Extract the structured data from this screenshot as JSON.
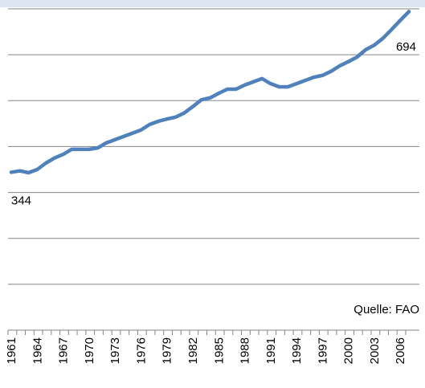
{
  "chart_data": {
    "type": "line",
    "source": "Quelle: FAO",
    "categories": [
      "1961",
      null,
      null,
      "1964",
      null,
      null,
      "1967",
      null,
      null,
      "1970",
      null,
      null,
      "1973",
      null,
      null,
      "1976",
      null,
      null,
      "1979",
      null,
      null,
      "1982",
      null,
      null,
      "1985",
      null,
      null,
      "1988",
      null,
      null,
      "1991",
      null,
      null,
      "1994",
      null,
      null,
      "1997",
      null,
      null,
      "2000",
      null,
      null,
      "2003",
      null,
      null,
      "2006",
      null
    ],
    "series": [
      {
        "name": null,
        "color": "#4f81bd",
        "values": [
          344,
          347,
          343,
          350,
          364,
          375,
          383,
          394,
          394,
          394,
          397,
          408,
          415,
          422,
          429,
          436,
          448,
          455,
          460,
          464,
          473,
          487,
          502,
          506,
          516,
          525,
          525,
          534,
          541,
          548,
          537,
          530,
          530,
          537,
          544,
          551,
          555,
          564,
          576,
          585,
          595,
          611,
          621,
          636,
          655,
          675,
          694
        ]
      }
    ],
    "ylim": [
      0,
      700
    ],
    "yticks": [
      0,
      100,
      200,
      300,
      400,
      500,
      600,
      700
    ],
    "grid": true
  }
}
